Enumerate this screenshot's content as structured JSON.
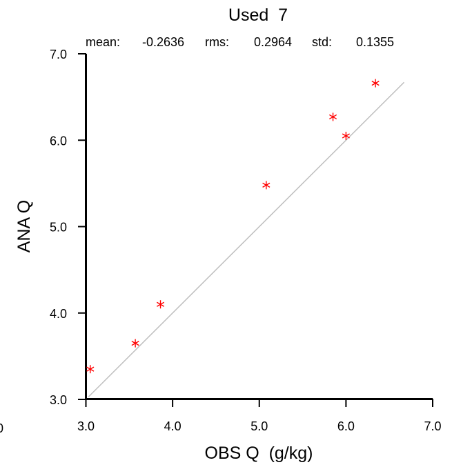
{
  "chart_data": {
    "type": "scatter",
    "title": "Used  7",
    "stats": {
      "mean_label": "mean:",
      "mean_value": "-0.2636",
      "rms_label": "rms:",
      "rms_value": "0.2964",
      "std_label": "std:",
      "std_value": "0.1355"
    },
    "xlabel": "OBS Q  (g/kg)",
    "ylabel": "ANA Q",
    "xlim": [
      3.0,
      7.0
    ],
    "ylim": [
      3.0,
      7.0
    ],
    "xticks": [
      "3.0",
      "4.0",
      "5.0",
      "6.0",
      "7.0"
    ],
    "yticks": [
      "3.0",
      "4.0",
      "5.0",
      "6.0",
      "7.0"
    ],
    "reference_line": {
      "x": [
        3.03,
        6.67
      ],
      "y": [
        3.03,
        6.67
      ],
      "color": "#bfbfbf"
    },
    "marker": "asterisk",
    "marker_color": "#ff0000",
    "points": [
      {
        "x": 3.05,
        "y": 3.35
      },
      {
        "x": 3.57,
        "y": 3.65
      },
      {
        "x": 3.86,
        "y": 4.1
      },
      {
        "x": 5.08,
        "y": 5.48
      },
      {
        "x": 5.85,
        "y": 6.27
      },
      {
        "x": 6.0,
        "y": 6.05
      },
      {
        "x": 6.34,
        "y": 6.66
      }
    ],
    "grid": false,
    "stray_glyph": "0"
  }
}
